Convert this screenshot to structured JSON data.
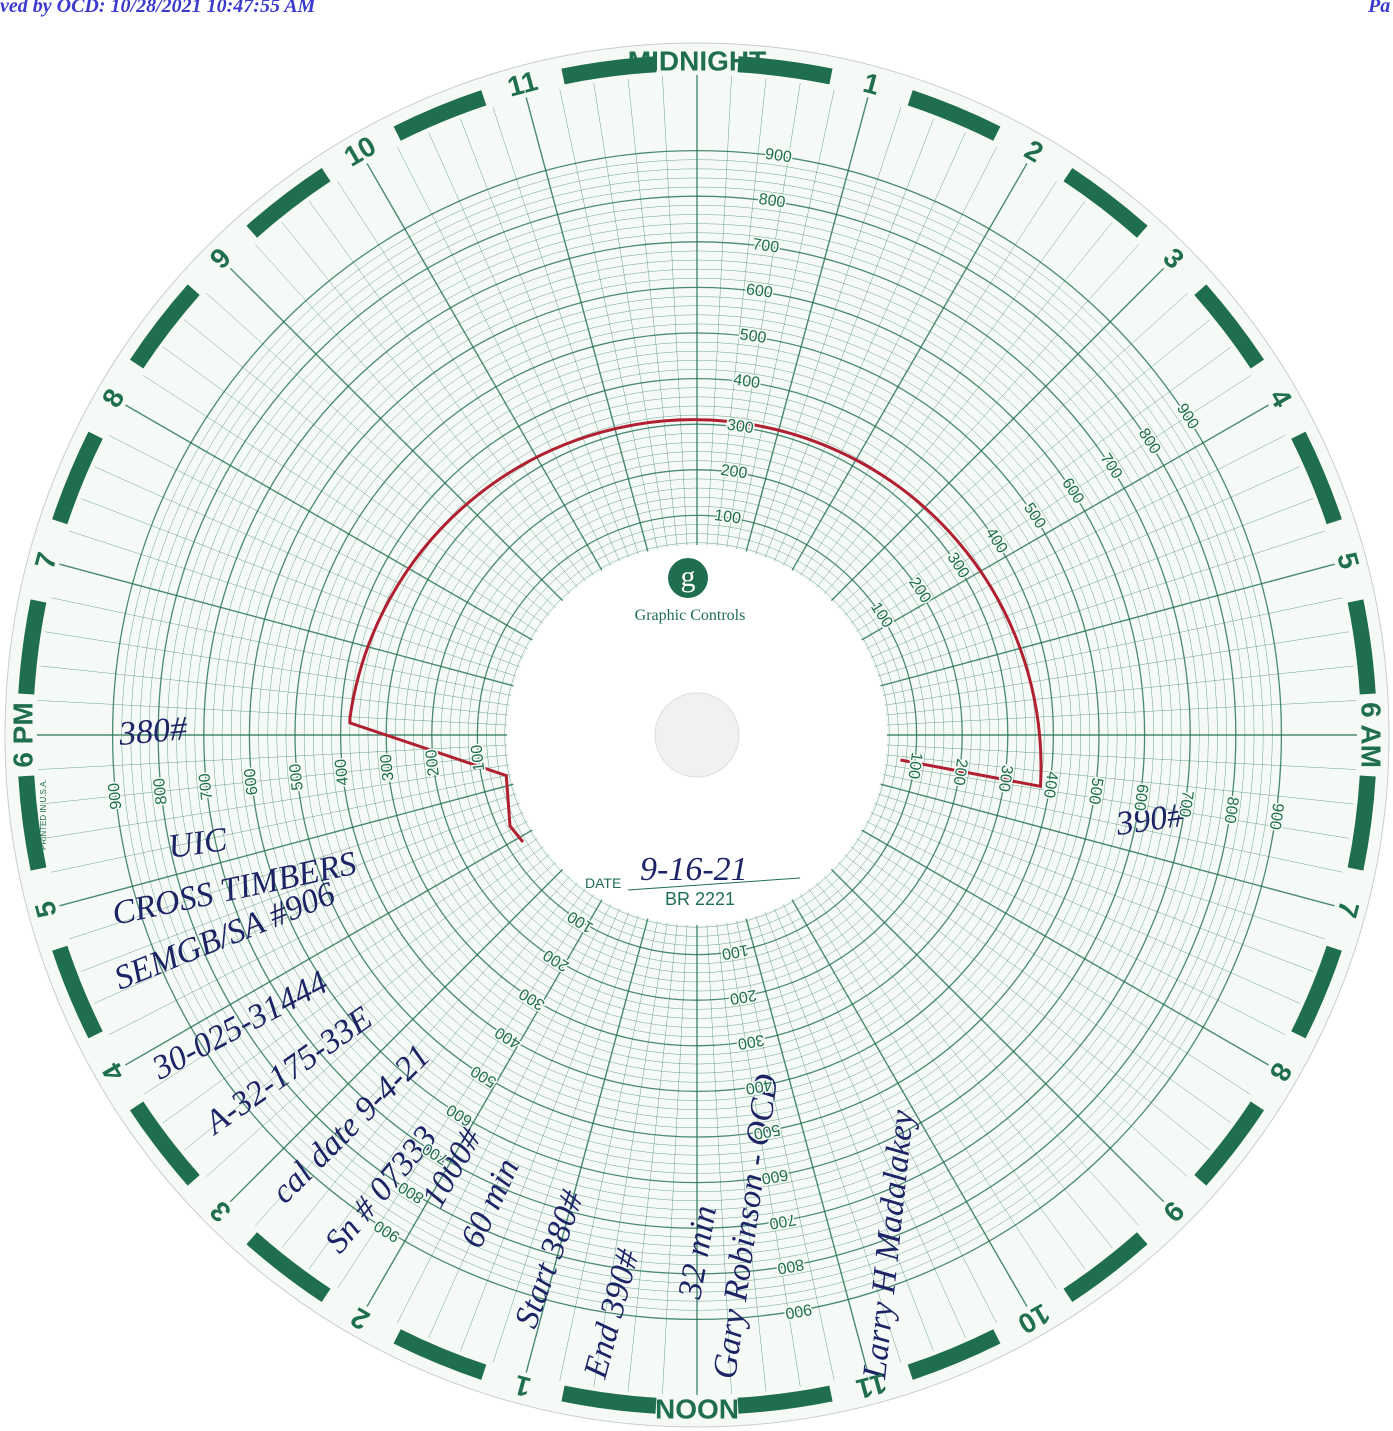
{
  "header": {
    "received": "ved by OCD: 10/28/2021 10:47:55 AM",
    "page": "Pa"
  },
  "dial": {
    "hours": [
      "MIDNIGHT",
      "1",
      "2",
      "3",
      "4",
      "5",
      "6 AM",
      "7",
      "8",
      "9",
      "10",
      "11",
      "NOON",
      "1",
      "2",
      "3",
      "4",
      "5",
      "6 PM",
      "7",
      "8",
      "9",
      "10",
      "11"
    ],
    "scale": [
      "100",
      "200",
      "300",
      "400",
      "500",
      "600",
      "700",
      "800",
      "900"
    ],
    "brand_mark": "g",
    "brand": "Graphic Controls",
    "date_label": "DATE",
    "date": "9-16-21",
    "chart_code": "BR 2221",
    "printed": "PRINTED IN U.S.A."
  },
  "notes": {
    "start_reading": "380#",
    "end_reading": "390#",
    "type": "UIC",
    "operator": "CROSS TIMBERS",
    "well": "SEMGB/SA #906",
    "api": "30-025-31444",
    "location": "A-32-175-33E",
    "cal_date": "cal date 9-4-21",
    "serial": "Sn # 07333",
    "range": "1000#",
    "duration": "60 min",
    "start": "Start 380#",
    "end": "End 390#",
    "elapsed": "32 min",
    "witness": "Gary Robinson - OCD",
    "tester": "Larry H Madalakey"
  }
}
